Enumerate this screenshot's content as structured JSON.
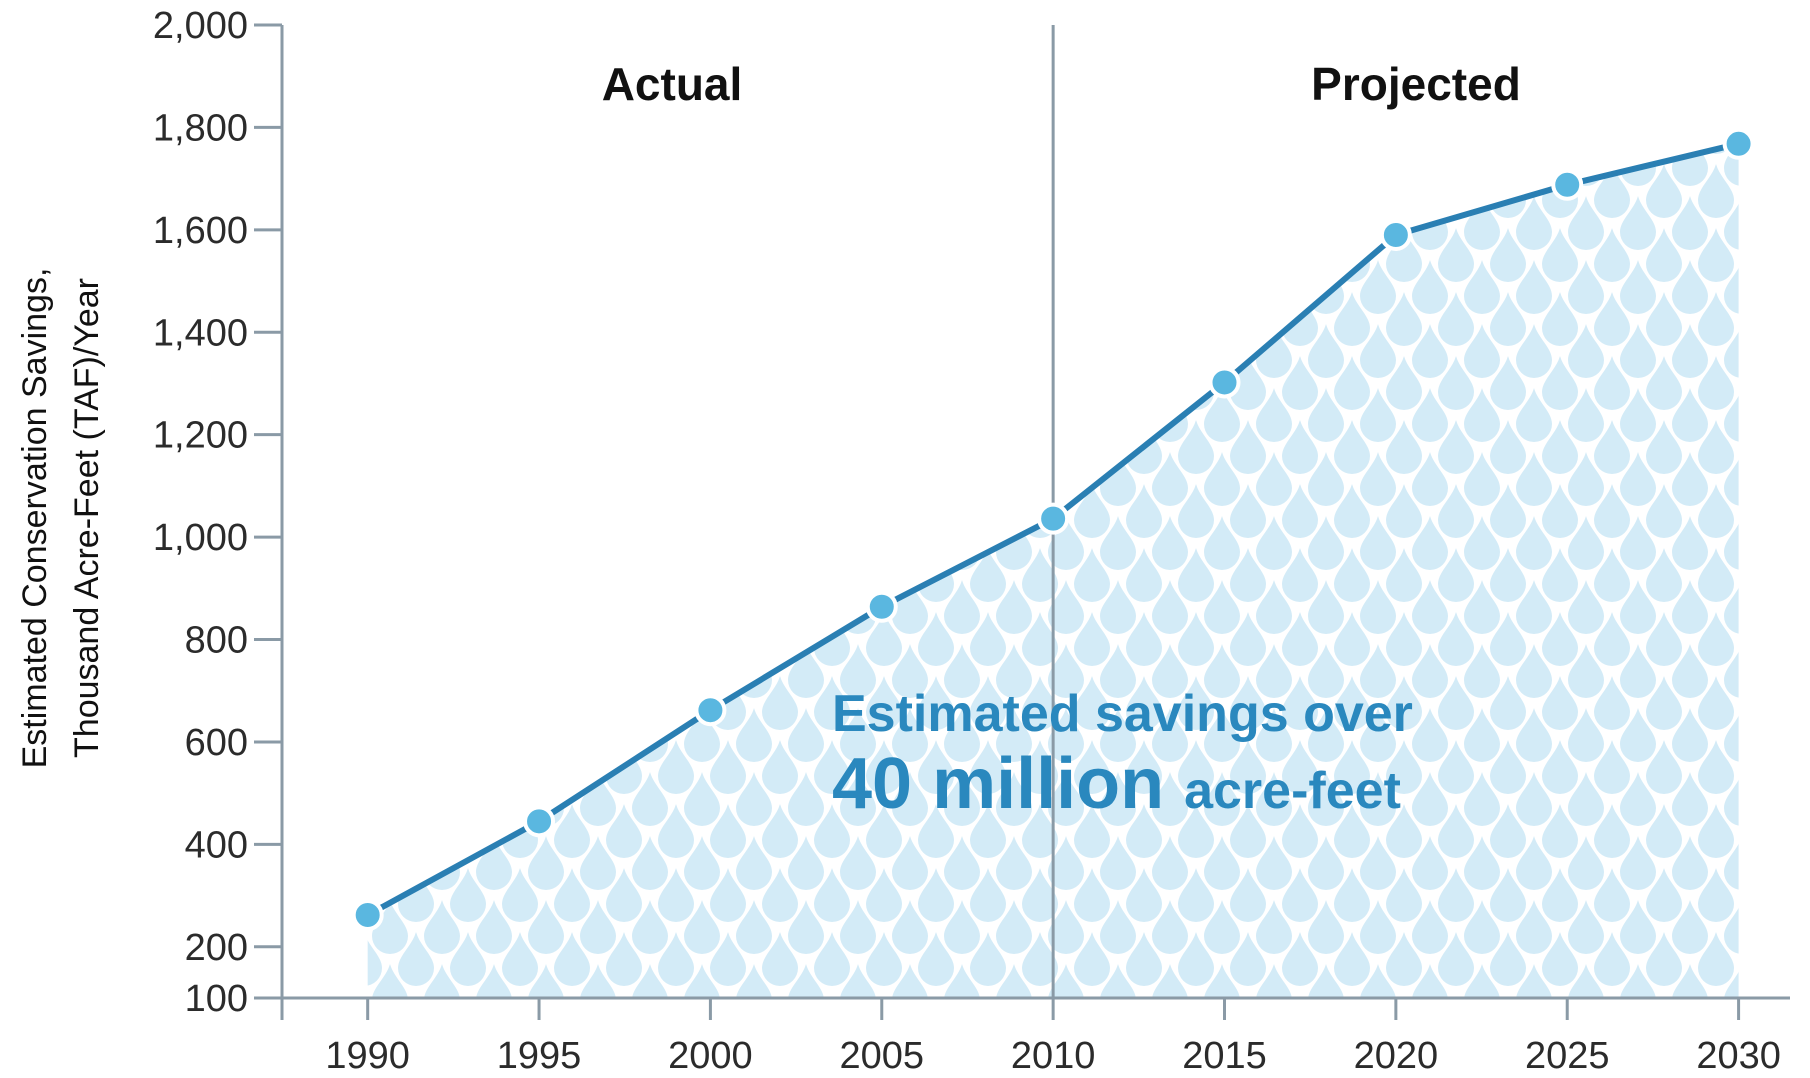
{
  "chart_data": {
    "type": "area",
    "x": [
      1990,
      1995,
      2000,
      2005,
      2010,
      2015,
      2020,
      2025,
      2030
    ],
    "series": [
      {
        "values": [
          262,
          445,
          662,
          864,
          1036,
          1302,
          1590,
          1688,
          1768
        ]
      }
    ],
    "ylabel_line1": "Estimated Conservation Savings,",
    "ylabel_line2": "Thousand Acre-Feet (TAF)/Year",
    "xlabel": "",
    "ylim": [
      100,
      2000
    ],
    "xlim": [
      1987.5,
      2031.5
    ],
    "yticks": [
      100,
      200,
      400,
      600,
      800,
      1000,
      1200,
      1400,
      1600,
      1800,
      2000
    ],
    "yticklabels": [
      "100",
      "200",
      "400",
      "600",
      "800",
      "1,000",
      "1,200",
      "1,400",
      "1,600",
      "1,800",
      "2,000"
    ],
    "xticks": [
      1990,
      1995,
      2000,
      2005,
      2010,
      2015,
      2020,
      2025,
      2030
    ],
    "xticklabels": [
      "1990",
      "1995",
      "2000",
      "2005",
      "2010",
      "2015",
      "2020",
      "2025",
      "2030"
    ],
    "divider_x": 2010,
    "sections": {
      "left": "Actual",
      "right": "Projected"
    },
    "annotation": {
      "line1": "Estimated savings over",
      "big": "40 million",
      "small": "acre-feet"
    },
    "grid": false,
    "colors": {
      "line": "#2a7fb3",
      "marker_fill": "#5ab7e0",
      "marker_stroke": "#ffffff",
      "area_pattern": "#d3ebf7",
      "axis": "#8a9aa6",
      "annotation": "#2a88be"
    }
  }
}
